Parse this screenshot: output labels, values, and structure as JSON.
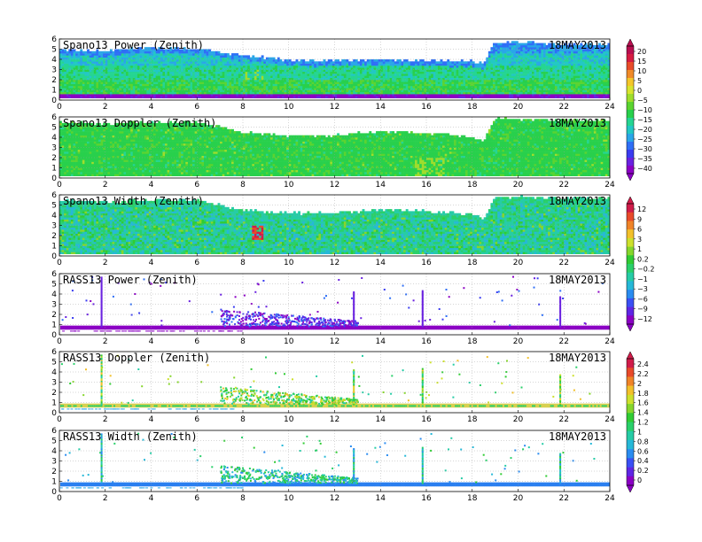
{
  "figure": {
    "date_label": "18MAY2013"
  },
  "colors": {
    "power_scale": [
      "#8b00c4",
      "#6a22e0",
      "#3a3cf0",
      "#2f6ff6",
      "#2aa6e8",
      "#22c8c4",
      "#25d592",
      "#28d04c",
      "#5bd430",
      "#9fdd2c",
      "#d8e42e",
      "#f4c62a",
      "#f08a28",
      "#e84c2a",
      "#d61c42",
      "#b80f50"
    ],
    "rain": [
      "#8b00c4",
      "#5f26e4",
      "#3a50f4",
      "#2a8cf0",
      "#26b8d8",
      "#26cca6",
      "#2ad06a",
      "#30cc34",
      "#86d62c",
      "#cde02c",
      "#f2c02a",
      "#f08428",
      "#e84a2a",
      "#d01c4a"
    ]
  },
  "colorbars": [
    {
      "name": "power-doppler-colorbar",
      "ticks": [
        "20",
        "15",
        "10",
        "5",
        "0",
        "−5",
        "−10",
        "−15",
        "−20",
        "−25",
        "−30",
        "−35",
        "−40"
      ]
    },
    {
      "name": "width-rasspower-colorbar",
      "ticks": [
        "12",
        "9",
        "6",
        "3",
        "1",
        "0.2",
        "−0.2",
        "−1",
        "−3",
        "−6",
        "−9",
        "−12"
      ]
    },
    {
      "name": "rass-colorbar",
      "ticks": [
        "2.4",
        "2.2",
        "2",
        "1.8",
        "1.6",
        "1.4",
        "1.2",
        "1",
        "0.8",
        "0.6",
        "0.4",
        "0.2",
        "0"
      ]
    }
  ],
  "chart_data": [
    {
      "type": "heatmap",
      "title": "Spano13 Power (Zenith)",
      "date": "18MAY2013",
      "xlim": [
        0,
        24
      ],
      "ylim": [
        0,
        6
      ],
      "xticks": [
        "0",
        "2",
        "4",
        "6",
        "8",
        "10",
        "12",
        "14",
        "16",
        "18",
        "20",
        "22",
        "24"
      ],
      "yticks": [
        "0",
        "1",
        "2",
        "3",
        "4",
        "5",
        "6"
      ],
      "colorbar": "power-doppler-colorbar",
      "top_of_data_km": [
        [
          0,
          5.0
        ],
        [
          2,
          4.8
        ],
        [
          4,
          5.2
        ],
        [
          6,
          5.0
        ],
        [
          8,
          4.4
        ],
        [
          10,
          3.9
        ],
        [
          12,
          3.9
        ],
        [
          14,
          4.0
        ],
        [
          16,
          3.9
        ],
        [
          18,
          3.8
        ],
        [
          18.5,
          3.6
        ],
        [
          19,
          5.7
        ],
        [
          20,
          5.7
        ],
        [
          22,
          5.5
        ],
        [
          24,
          5.5
        ]
      ]
    },
    {
      "type": "heatmap",
      "title": "Spano13 Doppler (Zenith)",
      "date": "18MAY2013",
      "xlim": [
        0,
        24
      ],
      "ylim": [
        0,
        6
      ],
      "xticks": [
        "0",
        "2",
        "4",
        "6",
        "8",
        "10",
        "12",
        "14",
        "16",
        "18",
        "20",
        "22",
        "24"
      ],
      "yticks": [
        "0",
        "1",
        "2",
        "3",
        "4",
        "5",
        "6"
      ],
      "colorbar": "power-doppler-colorbar",
      "top_of_data_km": [
        [
          0,
          5.5
        ],
        [
          2,
          5.3
        ],
        [
          4,
          5.5
        ],
        [
          6,
          5.5
        ],
        [
          8,
          4.5
        ],
        [
          10,
          4.2
        ],
        [
          12,
          4.2
        ],
        [
          14,
          4.6
        ],
        [
          16,
          4.4
        ],
        [
          18,
          4.1
        ],
        [
          18.5,
          3.6
        ],
        [
          19,
          5.8
        ],
        [
          20,
          5.8
        ],
        [
          22,
          5.7
        ],
        [
          24,
          5.7
        ]
      ]
    },
    {
      "type": "heatmap",
      "title": "Spano13 Width (Zenith)",
      "date": "18MAY2013",
      "xlim": [
        0,
        24
      ],
      "ylim": [
        0,
        6
      ],
      "xticks": [
        "0",
        "2",
        "4",
        "6",
        "8",
        "10",
        "12",
        "14",
        "16",
        "18",
        "20",
        "22",
        "24"
      ],
      "yticks": [
        "0",
        "1",
        "2",
        "3",
        "4",
        "5",
        "6"
      ],
      "colorbar": "width-rasspower-colorbar",
      "top_of_data_km": [
        [
          0,
          5.5
        ],
        [
          2,
          5.3
        ],
        [
          4,
          5.5
        ],
        [
          6,
          5.5
        ],
        [
          8,
          4.5
        ],
        [
          10,
          4.2
        ],
        [
          12,
          4.2
        ],
        [
          14,
          4.6
        ],
        [
          16,
          4.4
        ],
        [
          18,
          4.1
        ],
        [
          18.5,
          3.6
        ],
        [
          19,
          5.8
        ],
        [
          20,
          5.8
        ],
        [
          22,
          5.7
        ],
        [
          24,
          5.7
        ]
      ]
    },
    {
      "type": "scatter",
      "title": "RASS13 Power (Zenith)",
      "date": "18MAY2013",
      "xlim": [
        0,
        24
      ],
      "ylim": [
        0,
        6
      ],
      "xticks": [
        "0",
        "2",
        "4",
        "6",
        "8",
        "10",
        "12",
        "14",
        "16",
        "18",
        "20",
        "22",
        "24"
      ],
      "yticks": [
        "0",
        "1",
        "2",
        "3",
        "4",
        "5",
        "6"
      ],
      "colorbar": "width-rasspower-colorbar",
      "base_band_km": [
        0.5,
        0.9
      ],
      "vertical_spikes_h": [
        1.8,
        12.8,
        15.8,
        21.8
      ],
      "cluster_h": [
        7,
        13
      ]
    },
    {
      "type": "scatter",
      "title": "RASS13 Doppler (Zenith)",
      "date": "18MAY2013",
      "xlim": [
        0,
        24
      ],
      "ylim": [
        0,
        6
      ],
      "xticks": [
        "0",
        "2",
        "4",
        "6",
        "8",
        "10",
        "12",
        "14",
        "16",
        "18",
        "20",
        "22",
        "24"
      ],
      "yticks": [
        "0",
        "1",
        "2",
        "3",
        "4",
        "5",
        "6"
      ],
      "colorbar": "rass-colorbar",
      "base_band_km": [
        0.5,
        0.9
      ],
      "vertical_spikes_h": [
        1.8,
        12.8,
        15.8,
        21.8
      ],
      "cluster_h": [
        7,
        13
      ]
    },
    {
      "type": "scatter",
      "title": "RASS13 Width (Zenith)",
      "date": "18MAY2013",
      "xlim": [
        0,
        24
      ],
      "ylim": [
        0,
        6
      ],
      "xticks": [
        "0",
        "2",
        "4",
        "6",
        "8",
        "10",
        "12",
        "14",
        "16",
        "18",
        "20",
        "22",
        "24"
      ],
      "yticks": [
        "0",
        "1",
        "2",
        "3",
        "4",
        "5",
        "6"
      ],
      "colorbar": "rass-colorbar",
      "base_band_km": [
        0.5,
        0.9
      ],
      "vertical_spikes_h": [
        1.8,
        12.8,
        15.8,
        21.8
      ],
      "cluster_h": [
        7,
        13
      ]
    }
  ]
}
